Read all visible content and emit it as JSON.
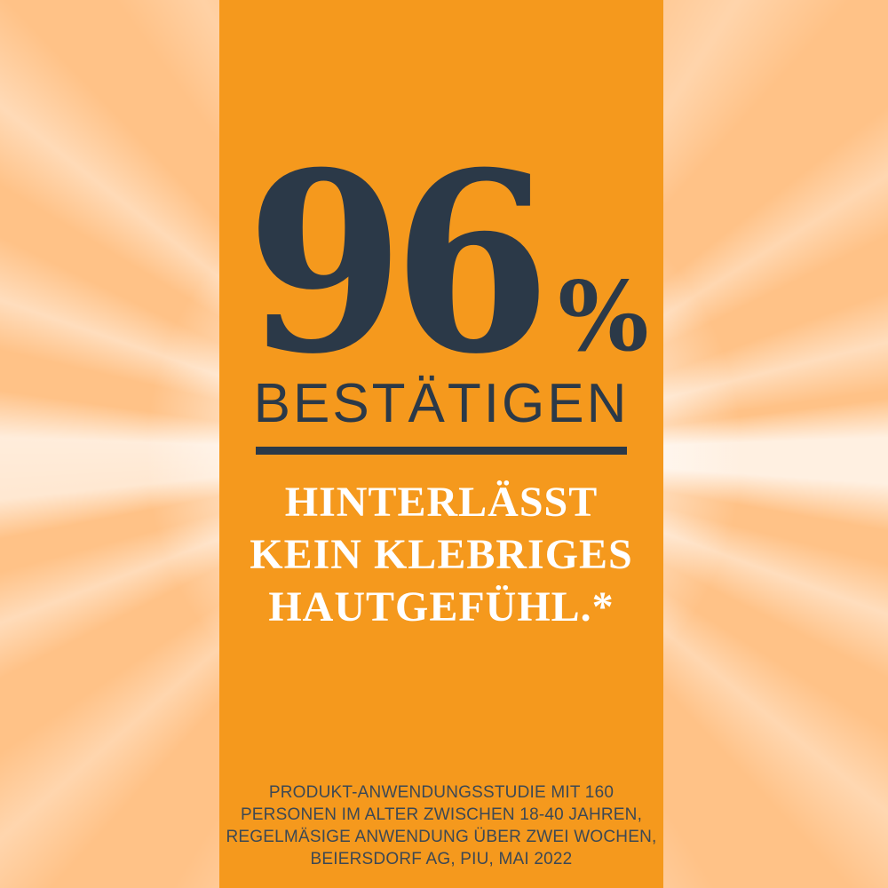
{
  "ad": {
    "stat_value": "96",
    "stat_unit": "%",
    "stat_label": "BESTÄTIGEN",
    "claim_lines": [
      "HINTERLÄSST",
      "KEIN KLEBRIGES",
      "HAUTGEFÜHL.*"
    ],
    "disclaimer_lines": [
      "PRODUKT-ANWENDUNGSSTUDIE MIT 160",
      "PERSONEN IM ALTER ZWISCHEN 18-40 JAHREN,",
      "REGELMÄSIGE ANWENDUNG ÜBER ZWEI WOCHEN,",
      "BEIERSDORF AG, PIU, MAI 2022"
    ]
  },
  "colors": {
    "panel_orange": "#F5991D",
    "background_orange": "#FFC287",
    "ray_white": "#FFFFFF",
    "headline_navy": "#2B3948",
    "claim_white": "#FFFFFF",
    "disclaimer_gray": "#3C4854"
  }
}
